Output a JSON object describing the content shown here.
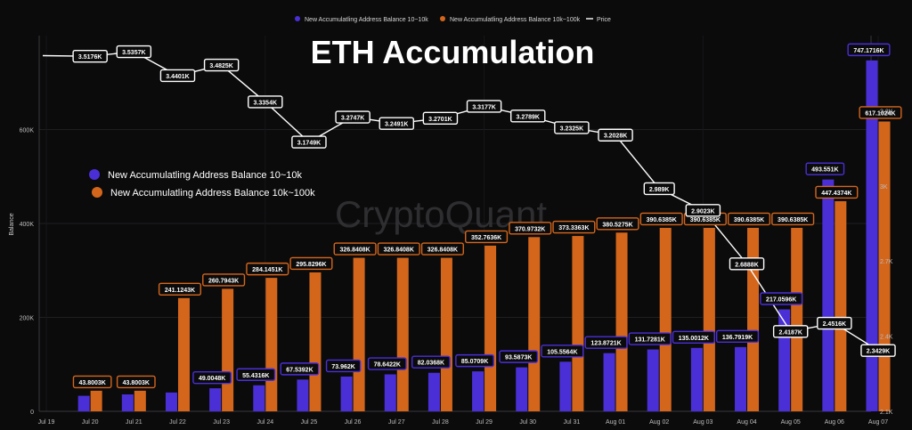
{
  "chart_data": {
    "type": "bar",
    "title": "ETH Accumulation",
    "watermark": "CryptoQuant",
    "ylabel": "Balance",
    "ylim": [
      0,
      800000
    ],
    "y2lim": [
      2100,
      3600
    ],
    "y_ticks": [
      {
        "value": 0,
        "label": "0"
      },
      {
        "value": 200000,
        "label": "200K"
      },
      {
        "value": 400000,
        "label": "400K"
      },
      {
        "value": 600000,
        "label": "600K"
      }
    ],
    "y2_ticks": [
      {
        "value": 2100,
        "label": "2.1K"
      },
      {
        "value": 2400,
        "label": "2.4K"
      },
      {
        "value": 2700,
        "label": "2.7K"
      },
      {
        "value": 3000,
        "label": "3K"
      },
      {
        "value": 3300,
        "label": "3.3K"
      }
    ],
    "categories": [
      "Jul 19",
      "Jul 20",
      "Jul 21",
      "Jul 22",
      "Jul 23",
      "Jul 24",
      "Jul 25",
      "Jul 26",
      "Jul 27",
      "Jul 28",
      "Jul 29",
      "Jul 30",
      "Jul 31",
      "Aug 01",
      "Aug 02",
      "Aug 03",
      "Aug 04",
      "Aug 05",
      "Aug 06",
      "Aug 07"
    ],
    "top_legend": [
      {
        "name": "New Accumulatling Address Balance 10~10k",
        "color": "#4b2fd6",
        "shape": "dot"
      },
      {
        "name": "New Accumulatling Address Balance 10k~100k",
        "color": "#d4661c",
        "shape": "dot"
      },
      {
        "name": "Price",
        "color": "#ffffff",
        "shape": "line"
      }
    ],
    "inner_legend": [
      {
        "name": "New Accumulatling Address Balance 10~10k",
        "color": "#4b2fd6"
      },
      {
        "name": "New Accumulatling Address Balance 10k~100k",
        "color": "#d4661c"
      }
    ],
    "series": [
      {
        "name": "New Accumulatling Address Balance 10~10k",
        "color": "#4b2fd6",
        "axis": "left",
        "values": [
          null,
          33000,
          36000,
          40000,
          49004.8,
          55431.6,
          67539.2,
          73962,
          78642.2,
          82036.8,
          85070.9,
          93587.3,
          105556.4,
          123872.1,
          131728.1,
          135001.2,
          136791.9,
          217059.6,
          493551,
          747171.6
        ],
        "labels": [
          "",
          "",
          "",
          "",
          "49.0048K",
          "55.4316K",
          "67.5392K",
          "73.962K",
          "78.6422K",
          "82.0368K",
          "85.0709K",
          "93.5873K",
          "105.5564K",
          "123.8721K",
          "131.7281K",
          "135.0012K",
          "136.7919K",
          "217.0596K",
          "493.551K",
          "747.1716K"
        ]
      },
      {
        "name": "New Accumulatling Address Balance 10k~100k",
        "color": "#d4661c",
        "axis": "left",
        "values": [
          null,
          43800.3,
          43800.3,
          241124.3,
          260794.3,
          284145.1,
          295829.6,
          326840.8,
          326840.8,
          326840.8,
          352763.6,
          370973.2,
          373336.3,
          380527.5,
          390638.5,
          390638.5,
          390638.5,
          390638.5,
          447437.4,
          617102.4
        ],
        "labels": [
          "",
          "43.8003K",
          "43.8003K",
          "241.1243K",
          "260.7943K",
          "284.1451K",
          "295.8296K",
          "326.8408K",
          "326.8408K",
          "326.8408K",
          "352.7636K",
          "370.9732K",
          "373.3363K",
          "380.5275K",
          "390.6385K",
          "390.6385K",
          "390.6385K",
          "390.6385K",
          "447.4374K",
          "617.1024K"
        ]
      },
      {
        "name": "Price",
        "color": "#ffffff",
        "axis": "right",
        "type": "line",
        "values": [
          3520,
          3517.6,
          3535.7,
          3440.1,
          3482.5,
          3335.4,
          3174.9,
          3274.7,
          3249.1,
          3270.1,
          3317.7,
          3278.9,
          3232.5,
          3202.8,
          2989,
          2902.3,
          2688.8,
          2418.7,
          2451.6,
          2342.9
        ],
        "labels": [
          "",
          "3.5176K",
          "3.5357K",
          "3.4401K",
          "3.4825K",
          "3.3354K",
          "3.1749K",
          "3.2747K",
          "3.2491K",
          "3.2701K",
          "3.3177K",
          "3.2789K",
          "3.2325K",
          "3.2028K",
          "2.989K",
          "2.9023K",
          "2.6888K",
          "2.4187K",
          "2.4516K",
          "2.3429K"
        ]
      }
    ],
    "grid": true
  }
}
